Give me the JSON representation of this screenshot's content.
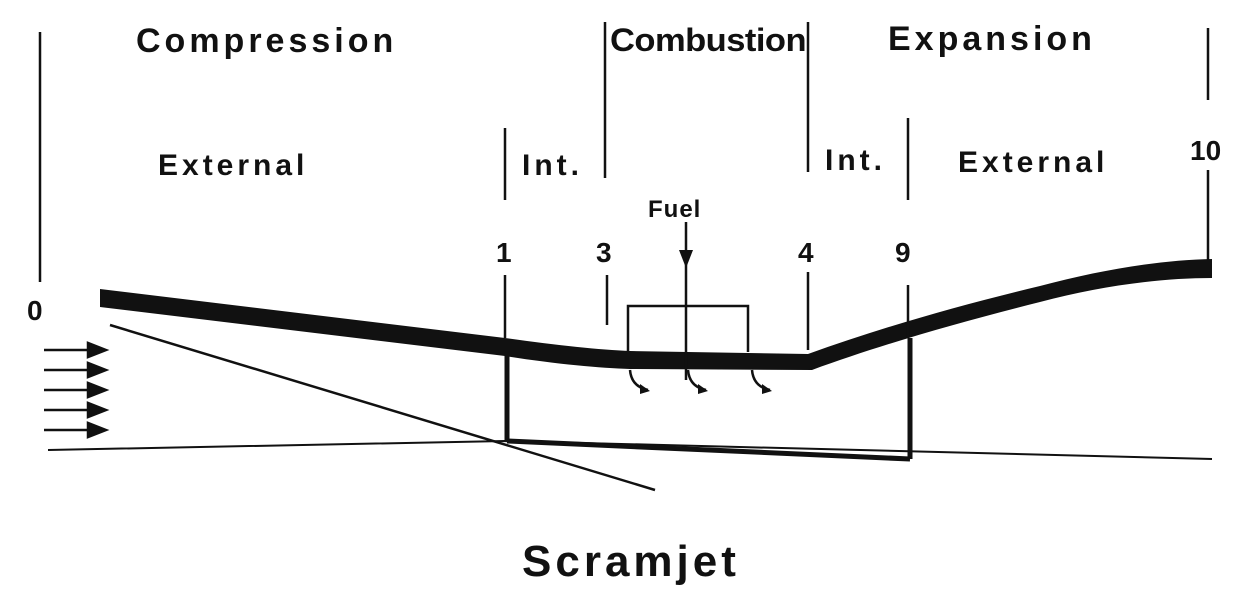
{
  "diagram": {
    "title": "Scramjet",
    "phases": {
      "compression": "Compression",
      "combustion": "Combustion",
      "expansion": "Expansion"
    },
    "regions": {
      "external_compression": "External",
      "internal_compression": "Int.",
      "internal_expansion": "Int.",
      "external_expansion": "External"
    },
    "stations": {
      "s0": "0",
      "s1": "1",
      "s3": "3",
      "s4": "4",
      "s9": "9",
      "s10": "10"
    },
    "fuel_label": "Fuel"
  }
}
